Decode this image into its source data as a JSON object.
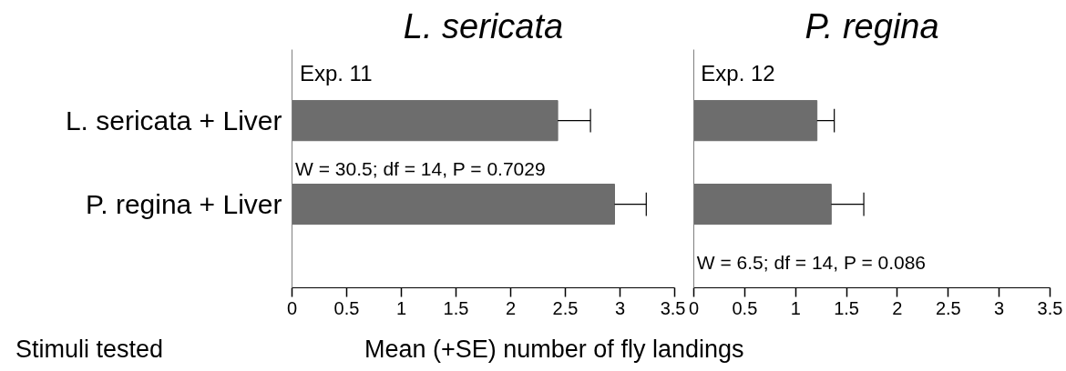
{
  "chart_data": [
    {
      "type": "bar",
      "orientation": "horizontal",
      "title": "L. sericata",
      "xlabel": "Mean (+SE) number of fly landings",
      "ylabel": "Stimuli tested",
      "categories": [
        "L. sericata + Liver",
        "P. regina + Liver"
      ],
      "values": [
        2.43,
        2.95
      ],
      "errors": [
        [
          2.43,
          2.73
        ],
        [
          2.95,
          3.24
        ]
      ],
      "color": "#6d6d6d",
      "xlim": [
        0,
        3.5
      ],
      "xticks": [
        0,
        0.5,
        1,
        1.5,
        2,
        2.5,
        3,
        3.5
      ],
      "grid": false,
      "annotations": [
        "Exp. 11",
        "W = 30.5; df = 14, P = 0.7029"
      ]
    },
    {
      "type": "bar",
      "orientation": "horizontal",
      "title": "P. regina",
      "tick_labels": "x",
      "values": [
        1.21,
        1.35
      ],
      "errors": [
        [
          1.21,
          1.38
        ],
        [
          1.35,
          1.67
        ]
      ],
      "color": "#6d6d6d",
      "xlim": [
        0,
        3.5
      ],
      "xticks": [
        0,
        0.5,
        1,
        1.5,
        2,
        2.5,
        3,
        3.5
      ],
      "grid": false,
      "annotations": [
        "Exp. 12",
        "W = 6.5; df = 14, P = 0.086"
      ]
    }
  ]
}
